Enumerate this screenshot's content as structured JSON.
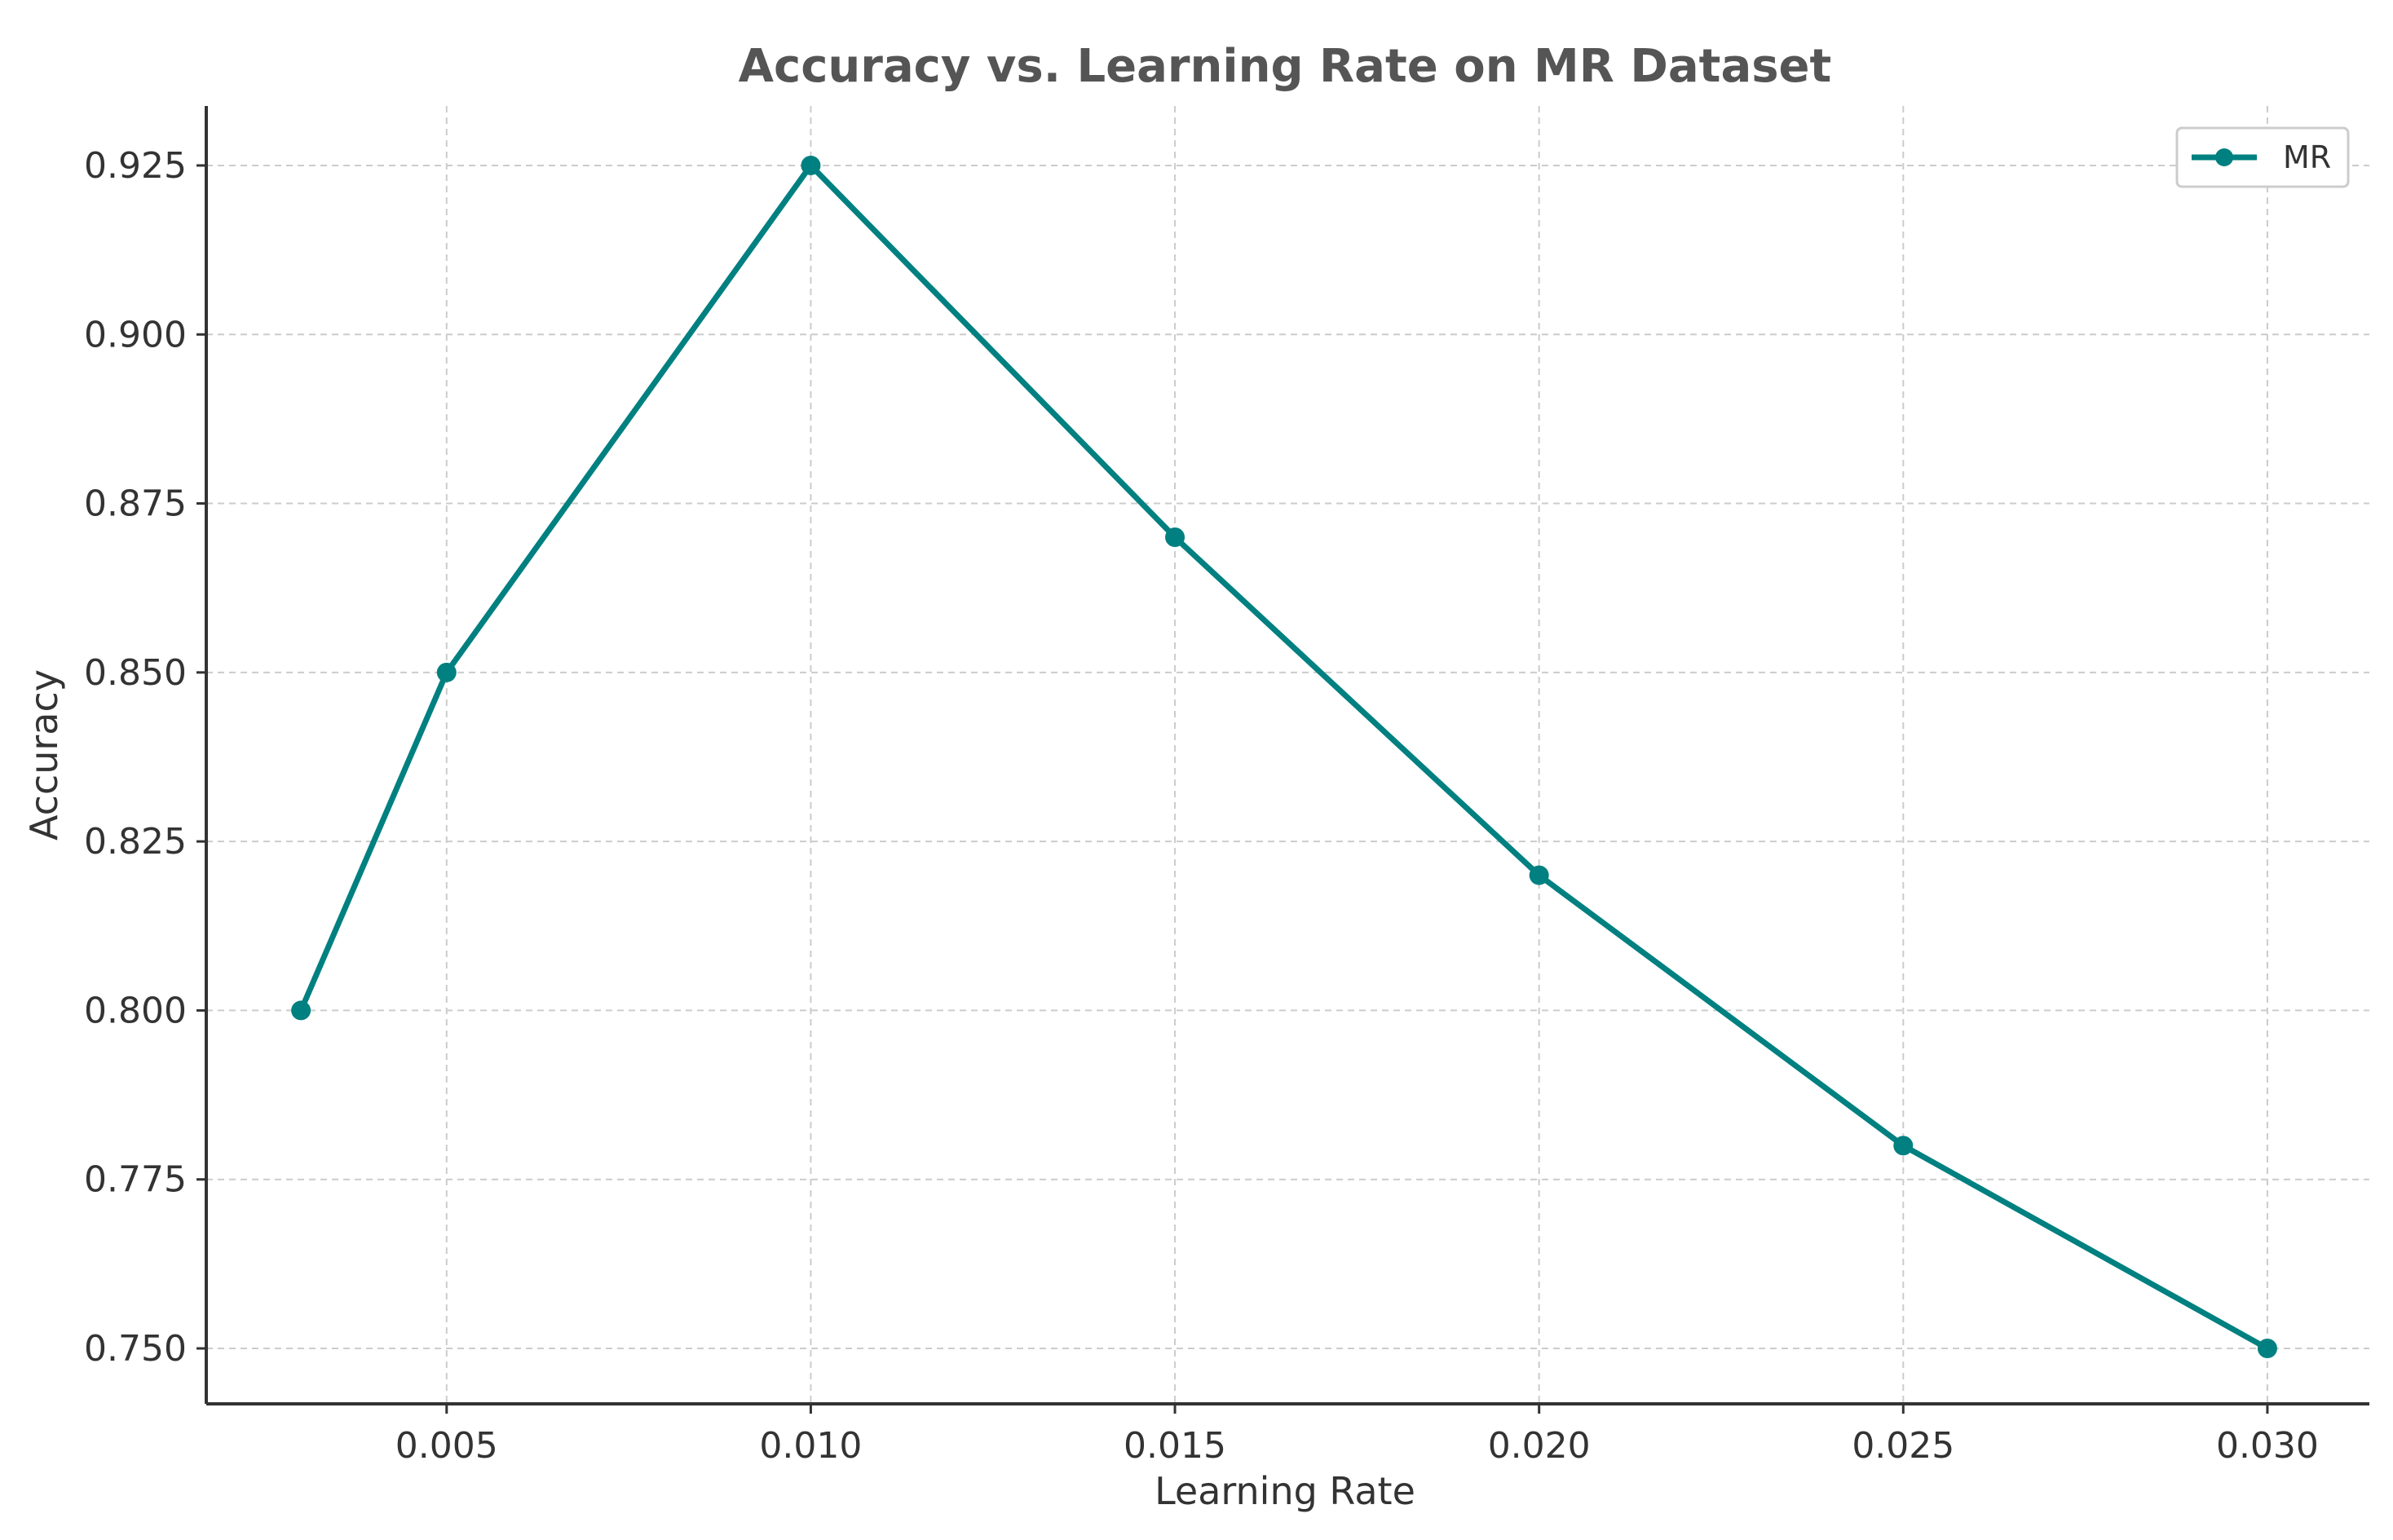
{
  "chart_data": {
    "type": "line",
    "title": "Accuracy vs. Learning Rate on MR Dataset",
    "xlabel": "Learning Rate",
    "ylabel": "Accuracy",
    "xlim": [
      0.0017,
      0.0314
    ],
    "ylim": [
      0.7418,
      0.9338
    ],
    "xticks": [
      0.005,
      0.01,
      0.015,
      0.02,
      0.025,
      0.03
    ],
    "xtick_labels": [
      "0.005",
      "0.010",
      "0.015",
      "0.020",
      "0.025",
      "0.030"
    ],
    "yticks": [
      0.75,
      0.775,
      0.8,
      0.825,
      0.85,
      0.875,
      0.9,
      0.925
    ],
    "ytick_labels": [
      "0.750",
      "0.775",
      "0.800",
      "0.825",
      "0.850",
      "0.875",
      "0.900",
      "0.925"
    ],
    "grid": true,
    "legend_position": "top-right",
    "series": [
      {
        "name": "MR",
        "color": "#008080",
        "marker": "circle",
        "x": [
          0.003,
          0.005,
          0.01,
          0.015,
          0.02,
          0.025,
          0.03
        ],
        "y": [
          0.8,
          0.85,
          0.925,
          0.87,
          0.82,
          0.78,
          0.75
        ]
      }
    ]
  }
}
